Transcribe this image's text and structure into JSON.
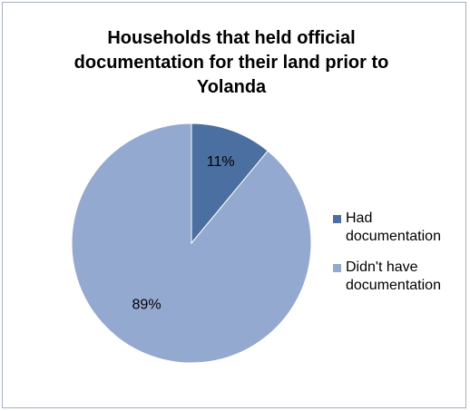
{
  "chart_data": {
    "type": "pie",
    "title_lines": [
      "Households that held official",
      "documentation for their land prior to",
      "Yolanda"
    ],
    "slices": [
      {
        "label": "Had documentation",
        "value": 11,
        "display": "11%",
        "color": "#4a6fa0"
      },
      {
        "label": "Didn't have documentation",
        "value": 89,
        "display": "89%",
        "color": "#94a9cf"
      }
    ],
    "legend_position": "right",
    "legend": [
      {
        "lines": [
          "Had",
          "documentation"
        ],
        "color": "#4a6fa0"
      },
      {
        "lines": [
          "Didn't have",
          "documentation"
        ],
        "color": "#94a9cf"
      }
    ]
  }
}
